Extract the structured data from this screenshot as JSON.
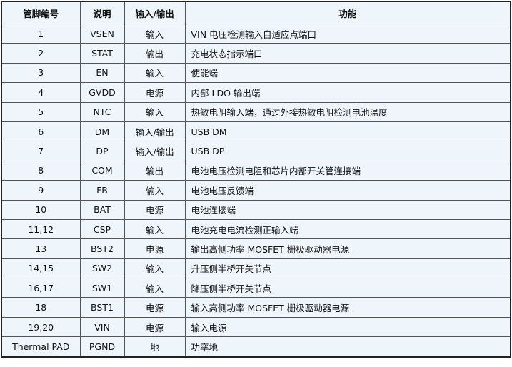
{
  "headers": [
    "管脚编号",
    "说明",
    "输入/输出",
    "功能"
  ],
  "rows": [
    [
      "1",
      "VSEN",
      "输入",
      "VIN 电压检测输入自适应点端口"
    ],
    [
      "2",
      "STAT",
      "输出",
      "充电状态指示端口"
    ],
    [
      "3",
      "EN",
      "输入",
      "使能端"
    ],
    [
      "4",
      "GVDD",
      "电源",
      "内部 LDO 输出端"
    ],
    [
      "5",
      "NTC",
      "输入",
      "热敏电阻输入端，通过外接热敏电阻检测电池温度"
    ],
    [
      "6",
      "DM",
      "输入/输出",
      "USB DM"
    ],
    [
      "7",
      "DP",
      "输入/输出",
      "USB DP"
    ],
    [
      "8",
      "COM",
      "输出",
      "电池电压检测电阻和芯片内部开关管连接端"
    ],
    [
      "9",
      "FB",
      "输入",
      "电池电压反馈端"
    ],
    [
      "10",
      "BAT",
      "电源",
      "电池连接端"
    ],
    [
      "11,12",
      "CSP",
      "输入",
      "电池充电电流检测正输入端"
    ],
    [
      "13",
      "BST2",
      "电源",
      "输出高侧功率 MOSFET 栅极驱动器电源"
    ],
    [
      "14,15",
      "SW2",
      "输入",
      "升压侧半桥开关节点"
    ],
    [
      "16,17",
      "SW1",
      "输入",
      "降压侧半桥开关节点"
    ],
    [
      "18",
      "BST1",
      "电源",
      "输入高侧功率 MOSFET 栅极驱动器电源"
    ],
    [
      "19,20",
      "VIN",
      "电源",
      "输入电源"
    ],
    [
      "Thermal PAD",
      "PGND",
      "地",
      "功率地"
    ]
  ]
}
